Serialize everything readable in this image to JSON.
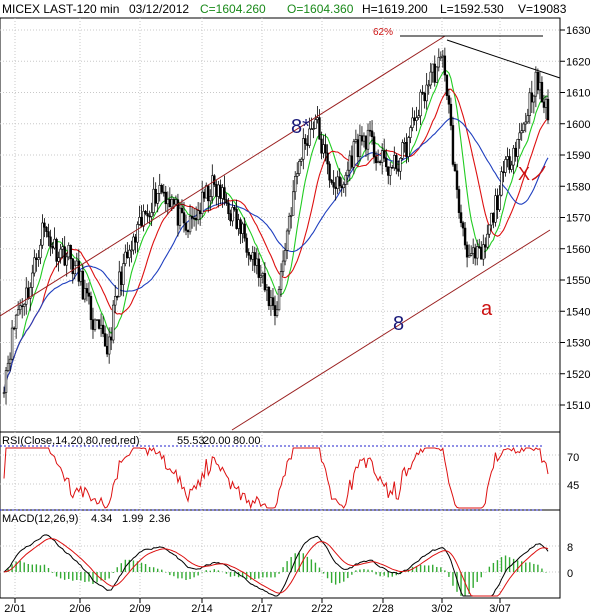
{
  "header": {
    "symbol": "MICEX LAST-120 min",
    "date": "03/12/2012",
    "close": "C=1604.260",
    "open": "O=1604.360",
    "high": "H=1619.200",
    "low": "L=1592.530",
    "volume": "V=19083"
  },
  "price_panel": {
    "annotations": {
      "fib_pct": "62%",
      "wave_8star": "8*",
      "wave_8": "8",
      "wave_a": "a",
      "wave_x": "X"
    }
  },
  "rsi_panel": {
    "title": "RSI(Close,14,20,80,red,red)",
    "value": "55.53",
    "lower": "20.00",
    "upper": "80.00",
    "ticks": [
      "70",
      "45"
    ]
  },
  "macd_panel": {
    "title": "MACD(12,26,9)",
    "macd": "4.34",
    "signal": "1.99",
    "hist": "2.36",
    "ticks": [
      "8",
      "0"
    ]
  },
  "colors": {
    "channel": "#9a1f1f",
    "resistance": "#000000",
    "ma_red": "#dd1111",
    "ma_green": "#22cc22",
    "ma_blue": "#1f3fbf",
    "label_navy": "#1a1a7a",
    "label_red": "#cc1111",
    "dotted": "#2222cc",
    "macd_up": "#33aa33",
    "macd_line": "#000000",
    "signal_line": "#dd1111"
  },
  "chart_data": {
    "type": "candlestick",
    "x_ticks": [
      "2/01",
      "2/06",
      "2/09",
      "2/14",
      "2/17",
      "2/22",
      "2/28",
      "3/02",
      "3/07"
    ],
    "y_ticks": [
      1630,
      1620,
      1610,
      1600,
      1590,
      1580,
      1570,
      1560,
      1550,
      1540,
      1530,
      1520,
      1510
    ],
    "ylim": [
      1500,
      1634
    ],
    "price_anchors": [
      1518,
      1540,
      1548,
      1567,
      1560,
      1558,
      1549,
      1535,
      1528,
      1552,
      1561,
      1572,
      1580,
      1575,
      1565,
      1572,
      1580,
      1576,
      1568,
      1561,
      1548,
      1540,
      1570,
      1592,
      1602,
      1585,
      1578,
      1592,
      1596,
      1588,
      1585,
      1592,
      1605,
      1616,
      1620,
      1575,
      1556,
      1558,
      1575,
      1589,
      1598,
      1614,
      1603
    ]
  }
}
